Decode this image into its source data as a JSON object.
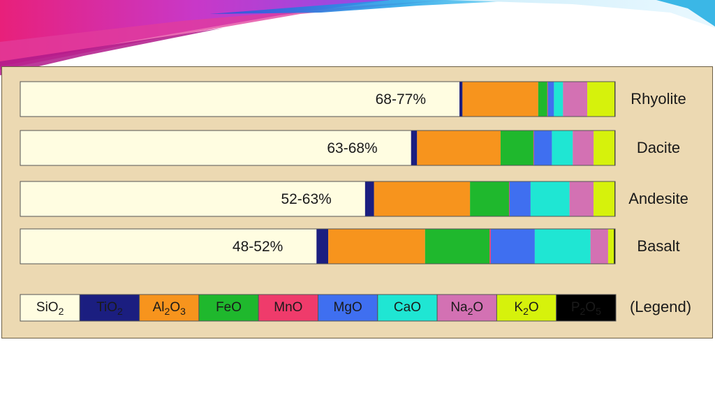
{
  "chart_data": {
    "type": "bar",
    "orientation": "horizontal",
    "stacked": true,
    "categories": [
      "Rhyolite",
      "Dacite",
      "Andesite",
      "Basalt"
    ],
    "bar_labels": [
      "68-77%",
      "63-68%",
      "52-63%",
      "48-52%"
    ],
    "series": [
      {
        "name": "SiO2",
        "label_main": "SiO",
        "label_sub": "2",
        "color": "#fffde1",
        "values": [
          72.5,
          65.5,
          57.5,
          50.5
        ]
      },
      {
        "name": "TiO2",
        "label_main": "TiO",
        "label_sub": "2",
        "color": "#1b1e80",
        "values": [
          0.5,
          1,
          1.5,
          2
        ]
      },
      {
        "name": "Al2O3",
        "label_main": "Al2O3",
        "color": "#f7941d",
        "values": [
          12.5,
          14,
          16,
          16.5
        ]
      },
      {
        "name": "FeO",
        "label_main": "FeO",
        "color": "#1fb82d",
        "values": [
          1.5,
          5.5,
          6.5,
          11
        ]
      },
      {
        "name": "MnO",
        "label_main": "MnO",
        "color": "#ef3b6b",
        "values": [
          0.1,
          0.1,
          0.1,
          0.2
        ]
      },
      {
        "name": "MgO",
        "label_main": "MgO",
        "color": "#3f6ff0",
        "values": [
          1,
          3,
          3.5,
          7.5
        ]
      },
      {
        "name": "CaO",
        "label_main": "CaO",
        "color": "#1fe6d3",
        "values": [
          1.5,
          3.5,
          6.5,
          9.5
        ]
      },
      {
        "name": "Na2O",
        "label_main": "Na2O",
        "color": "#d371b3",
        "values": [
          4,
          3.5,
          4,
          3
        ]
      },
      {
        "name": "K2O",
        "label_main": "K2O",
        "color": "#d6f20c",
        "values": [
          4.5,
          3.5,
          3.5,
          1
        ]
      },
      {
        "name": "P2O5",
        "label_main": "P2O5",
        "color": "#000000",
        "values": [
          0.1,
          0.1,
          0.1,
          0.2
        ]
      }
    ],
    "legend_title": "(Legend)",
    "legend_position": "bottom",
    "xlim": [
      0,
      100
    ],
    "grid": false
  }
}
